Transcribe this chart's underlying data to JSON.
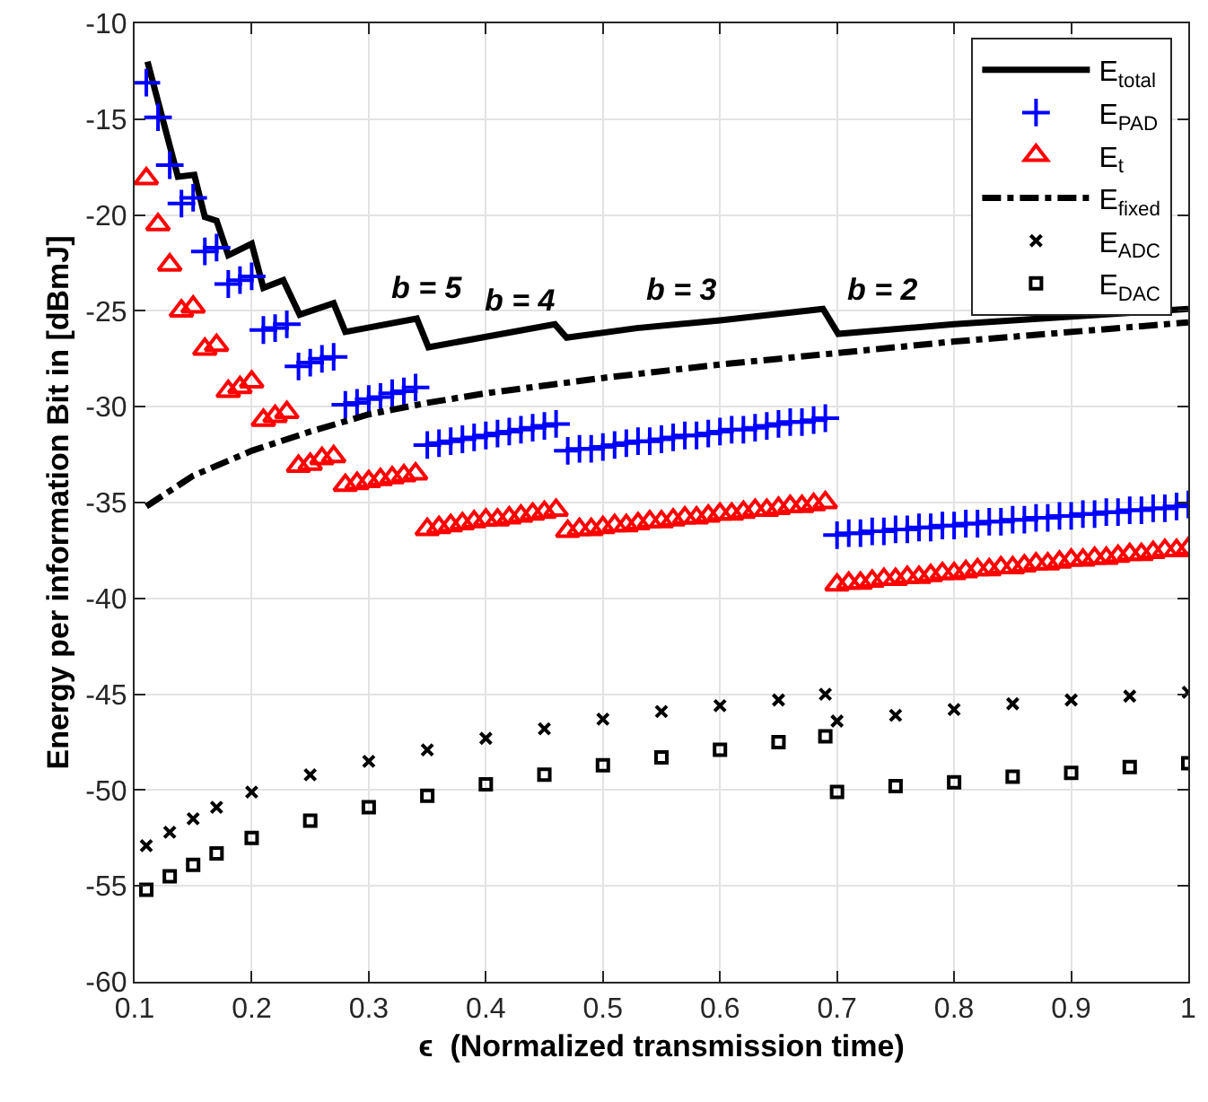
{
  "chart_data": {
    "type": "scatter",
    "xlabel": "ϵ  (Normalized transmission time)",
    "ylabel": "Energy per information Bit in [dBmJ]",
    "x": [
      0.11,
      0.12,
      0.13,
      0.14,
      0.15,
      0.16,
      0.17,
      0.18,
      0.19,
      0.2,
      0.21,
      0.22,
      0.23,
      0.24,
      0.25,
      0.26,
      0.27,
      0.28,
      0.29,
      0.3,
      0.31,
      0.32,
      0.33,
      0.34,
      0.35,
      0.36,
      0.37,
      0.38,
      0.39,
      0.4,
      0.41,
      0.42,
      0.43,
      0.44,
      0.45,
      0.46,
      0.47,
      0.48,
      0.49,
      0.5,
      0.51,
      0.52,
      0.53,
      0.54,
      0.55,
      0.56,
      0.57,
      0.58,
      0.59,
      0.6,
      0.61,
      0.62,
      0.63,
      0.64,
      0.65,
      0.66,
      0.67,
      0.68,
      0.69,
      0.7,
      0.71,
      0.72,
      0.73,
      0.74,
      0.75,
      0.76,
      0.77,
      0.78,
      0.79,
      0.8,
      0.81,
      0.82,
      0.83,
      0.84,
      0.85,
      0.86,
      0.87,
      0.88,
      0.89,
      0.9,
      0.91,
      0.92,
      0.93,
      0.94,
      0.95,
      0.96,
      0.97,
      0.98,
      0.99,
      1.0
    ],
    "series": [
      {
        "name": "E$_{total}$",
        "type": "line",
        "color": "#000000",
        "marker": "none",
        "line_style": "solid",
        "x": [
          0.111,
          0.137,
          0.151,
          0.16,
          0.17,
          0.18,
          0.2,
          0.21,
          0.227,
          0.241,
          0.27,
          0.28,
          0.341,
          0.351,
          0.459,
          0.469,
          0.529,
          0.6,
          0.688,
          0.701,
          0.8,
          0.9,
          1.0
        ],
        "values": [
          -12.0,
          -18.0,
          -17.9,
          -20.1,
          -20.3,
          -22.1,
          -21.5,
          -23.8,
          -23.4,
          -25.2,
          -24.6,
          -26.1,
          -25.4,
          -26.9,
          -25.7,
          -26.4,
          -25.9,
          -25.5,
          -24.9,
          -26.2,
          -25.7,
          null,
          -24.9
        ]
      },
      {
        "name": "E$_{PAD}$",
        "color": "#0000ff",
        "marker": "plus",
        "values": [
          -13.1,
          -14.9,
          -17.4,
          -19.4,
          -19.1,
          -21.9,
          -21.7,
          -23.6,
          -23.4,
          -23.2,
          -26.0,
          -25.9,
          -25.7,
          -27.9,
          -27.7,
          -27.5,
          -27.4,
          -29.9,
          -29.8,
          -29.6,
          -29.5,
          -29.3,
          -29.2,
          -29.0,
          -32.0,
          -31.9,
          -31.8,
          -31.7,
          -31.6,
          -31.5,
          -31.4,
          -31.3,
          -31.2,
          -31.1,
          -31.0,
          -30.9,
          -32.3,
          -32.2,
          -32.2,
          -32.1,
          -32.0,
          -31.9,
          -31.8,
          -31.8,
          -31.7,
          -31.6,
          -31.5,
          -31.5,
          -31.4,
          -31.3,
          -31.2,
          -31.2,
          -31.1,
          -31.0,
          -30.9,
          -30.8,
          -30.8,
          -30.7,
          -30.6,
          -36.7,
          -36.6,
          -36.6,
          -36.5,
          -36.5,
          -36.4,
          -36.4,
          -36.3,
          -36.3,
          -36.2,
          -36.2,
          -36.1,
          -36.1,
          -36.0,
          -36.0,
          -35.9,
          -35.9,
          -35.8,
          -35.8,
          -35.7,
          -35.7,
          -35.6,
          -35.6,
          -35.5,
          -35.5,
          -35.4,
          -35.4,
          -35.3,
          -35.3,
          -35.2,
          -35.1
        ]
      },
      {
        "name": "E$_{t}$",
        "color": "#ff0000",
        "marker": "triangle",
        "values": [
          -18.1,
          -20.5,
          -22.6,
          -25.0,
          -24.8,
          -27.0,
          -26.8,
          -29.2,
          -29.0,
          -28.7,
          -30.7,
          -30.5,
          -30.3,
          -33.1,
          -33.0,
          -32.7,
          -32.6,
          -34.1,
          -34.0,
          -33.9,
          -33.8,
          -33.7,
          -33.6,
          -33.5,
          -36.4,
          -36.3,
          -36.2,
          -36.1,
          -36.0,
          -35.9,
          -35.9,
          -35.8,
          -35.7,
          -35.6,
          -35.5,
          -35.4,
          -36.5,
          -36.4,
          -36.4,
          -36.3,
          -36.2,
          -36.2,
          -36.1,
          -36.0,
          -36.0,
          -35.9,
          -35.8,
          -35.8,
          -35.7,
          -35.6,
          -35.6,
          -35.5,
          -35.4,
          -35.4,
          -35.3,
          -35.2,
          -35.2,
          -35.1,
          -35.0,
          -39.3,
          -39.2,
          -39.2,
          -39.1,
          -39.0,
          -39.0,
          -38.9,
          -38.9,
          -38.8,
          -38.7,
          -38.7,
          -38.6,
          -38.5,
          -38.5,
          -38.4,
          -38.4,
          -38.3,
          -38.2,
          -38.2,
          -38.1,
          -38.0,
          -38.0,
          -37.9,
          -37.9,
          -37.8,
          -37.7,
          -37.7,
          -37.6,
          -37.5,
          -37.5,
          -37.4
        ]
      },
      {
        "name": "E$_{fixed}$",
        "type": "line",
        "color": "#000000",
        "marker": "none",
        "line_style": "dashdot",
        "x": [
          0.11,
          0.13,
          0.15,
          0.2,
          0.25,
          0.3,
          0.35,
          0.4,
          0.5,
          0.6,
          0.7,
          0.8,
          0.9,
          1.0
        ],
        "values": [
          -35.2,
          -34.4,
          -33.6,
          -32.3,
          -31.3,
          -30.4,
          -29.8,
          -29.3,
          -28.5,
          -27.8,
          -27.2,
          -26.6,
          null,
          -25.6
        ]
      },
      {
        "name": "E$_{ADC}$",
        "color": "#000000",
        "marker": "cross",
        "x": [
          0.11,
          0.13,
          0.15,
          0.17,
          0.2,
          0.25,
          0.3,
          0.35,
          0.4,
          0.45,
          0.5,
          0.55,
          0.6,
          0.65,
          0.69,
          0.7,
          0.75,
          0.8,
          0.85,
          0.9,
          0.95,
          1.0
        ],
        "values": [
          -52.9,
          -52.2,
          -51.5,
          -50.9,
          -50.1,
          -49.2,
          -48.5,
          -47.9,
          -47.3,
          -46.8,
          -46.3,
          -45.9,
          -45.6,
          -45.3,
          -45.0,
          -46.4,
          -46.1,
          -45.8,
          -45.5,
          -45.3,
          -45.1,
          -44.9
        ]
      },
      {
        "name": "E$_{DAC}$",
        "color": "#000000",
        "marker": "square",
        "x": [
          0.11,
          0.13,
          0.15,
          0.17,
          0.2,
          0.25,
          0.3,
          0.35,
          0.4,
          0.45,
          0.5,
          0.55,
          0.6,
          0.65,
          0.69,
          0.7,
          0.75,
          0.8,
          0.85,
          0.9,
          0.95,
          1.0
        ],
        "values": [
          -55.2,
          -54.5,
          -53.9,
          -53.3,
          -52.5,
          -51.6,
          -50.9,
          -50.3,
          -49.7,
          -49.2,
          -48.7,
          -48.3,
          -47.9,
          -47.5,
          -47.2,
          -50.1,
          -49.8,
          -49.6,
          -49.3,
          -49.1,
          -48.8,
          -48.6
        ]
      }
    ],
    "annotations": [
      "b = 5",
      "b = 4",
      "b = 3",
      "b = 2"
    ],
    "xlim": [
      0.1,
      1.0
    ],
    "xticks": [
      0.1,
      0.2,
      0.3,
      0.4,
      0.5,
      0.6,
      0.7,
      0.8,
      0.9,
      {
        "value": 1.0,
        "label": "1"
      }
    ],
    "ylim": [
      -60,
      -10
    ],
    "yticks": [
      -60,
      -55,
      -50,
      -45,
      -40,
      -35,
      -30,
      -25,
      -20,
      -15,
      -10
    ],
    "grid": true,
    "legend": "top right"
  }
}
